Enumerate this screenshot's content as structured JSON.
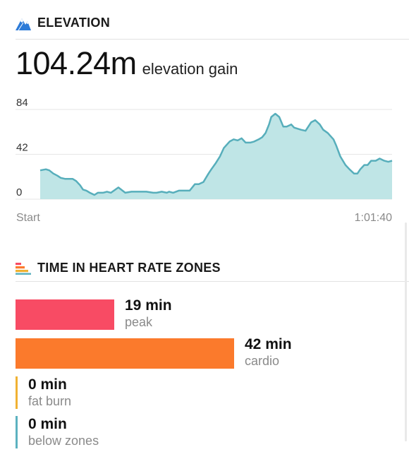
{
  "elevation": {
    "title": "ELEVATION",
    "icon": "mountain-icon",
    "value": "104.24m",
    "value_label": "elevation gain"
  },
  "chart_data": {
    "type": "area",
    "xlabel": "",
    "ylabel": "",
    "x_tick_labels": [
      "Start",
      "1:01:40"
    ],
    "y_ticks": [
      0,
      42,
      84
    ],
    "ylim": [
      0,
      84
    ],
    "xlim": [
      0,
      61.67
    ],
    "grid": true,
    "colors": {
      "fill": "#bfe5e6",
      "line": "#57aebb",
      "grid": "#e6e6e6"
    },
    "x": [
      0,
      1.0,
      1.6,
      2.3,
      3.0,
      3.6,
      4.4,
      5.0,
      5.7,
      6.3,
      7.0,
      7.5,
      8.1,
      8.7,
      9.5,
      10.1,
      10.5,
      11.0,
      11.7,
      12.4,
      13.7,
      14.9,
      16.0,
      17.3,
      18.6,
      19.8,
      20.4,
      21.3,
      22.2,
      22.6,
      23.3,
      24.3,
      25.0,
      25.5,
      26.2,
      27.1,
      27.8,
      28.6,
      29.5,
      30.0,
      30.8,
      31.5,
      32.2,
      33.2,
      33.9,
      34.6,
      35.3,
      36.0,
      36.8,
      37.5,
      38.3,
      38.9,
      39.5,
      40.1,
      40.5,
      41.2,
      41.9,
      42.6,
      43.2,
      44.0,
      44.5,
      45.1,
      45.7,
      46.5,
      47.5,
      48.2,
      49.0,
      49.6,
      50.4,
      51.4,
      51.9,
      52.6,
      53.5,
      54.2,
      55.0,
      55.6,
      56.1,
      56.8,
      57.4,
      58.0,
      58.8,
      59.5,
      60.3,
      61.0,
      61.67
    ],
    "y": [
      27,
      28,
      27,
      24,
      22,
      20,
      19,
      19,
      19,
      17,
      13,
      9,
      8,
      6,
      4,
      6,
      6,
      6,
      7,
      6,
      11,
      6,
      7,
      7,
      7,
      6,
      6,
      7,
      6,
      7,
      6,
      8,
      8,
      8,
      8,
      14,
      14,
      16,
      24,
      28,
      34,
      40,
      48,
      54,
      56,
      55,
      57,
      53,
      53,
      54,
      56,
      58,
      62,
      70,
      77,
      80,
      77,
      68,
      68,
      70,
      67,
      66,
      65,
      64,
      72,
      74,
      70,
      65,
      62,
      56,
      50,
      40,
      32,
      28,
      24,
      24,
      28,
      32,
      32,
      36,
      36,
      38,
      36,
      35,
      36
    ],
    "fill_baseline": 0
  },
  "heart_rate": {
    "title": "TIME IN HEART RATE ZONES",
    "icon": "bars-icon",
    "zones": [
      {
        "name": "peak",
        "value": "19 min",
        "label": "peak",
        "minutes": 19,
        "color": "#f84b64"
      },
      {
        "name": "cardio",
        "value": "42 min",
        "label": "cardio",
        "minutes": 42,
        "color": "#fb7a2c"
      },
      {
        "name": "fat-burn",
        "value": "0 min",
        "label": "fat burn",
        "minutes": 0,
        "color": "#f0b233"
      },
      {
        "name": "below-zones",
        "value": "0 min",
        "label": "below zones",
        "minutes": 0,
        "color": "#5cb2c0"
      }
    ]
  }
}
